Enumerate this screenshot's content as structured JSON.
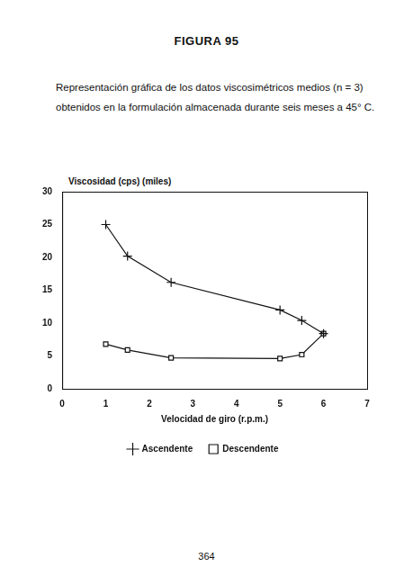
{
  "document": {
    "heading": "FIGURA 95",
    "caption": "Representación gráfica de los datos viscosimétricos medios (n = 3) obtenidos en la formulación almacenada durante seis meses a 45° C.",
    "page_number": "364"
  },
  "chart_data": {
    "type": "line",
    "y_label": "Viscosidad (cps) (miles)",
    "x_label": "Velocidad de giro (r.p.m.)",
    "series": [
      {
        "name": "Ascendente",
        "color": "#111111",
        "marker": "plus",
        "line_style": "solid",
        "x": [
          1,
          1.5,
          2.5,
          5,
          5.5,
          6
        ],
        "values": [
          25,
          20.2,
          16.2,
          12,
          10.4,
          8.4
        ]
      },
      {
        "name": "Descendente",
        "color": "#111111",
        "marker": "square",
        "line_style": "solid",
        "x": [
          6,
          5.5,
          5,
          2.5,
          1.5,
          1
        ],
        "values": [
          8.4,
          5.2,
          4.6,
          4.7,
          5.9,
          6.8
        ]
      }
    ],
    "xlim": [
      0,
      7
    ],
    "xticks": [
      0,
      1,
      2,
      3,
      4,
      5,
      6,
      7
    ],
    "ylim": [
      0,
      30
    ],
    "yticks": [
      0,
      5,
      10,
      15,
      20,
      25,
      30
    ],
    "grid": false,
    "legend": "bottom"
  }
}
